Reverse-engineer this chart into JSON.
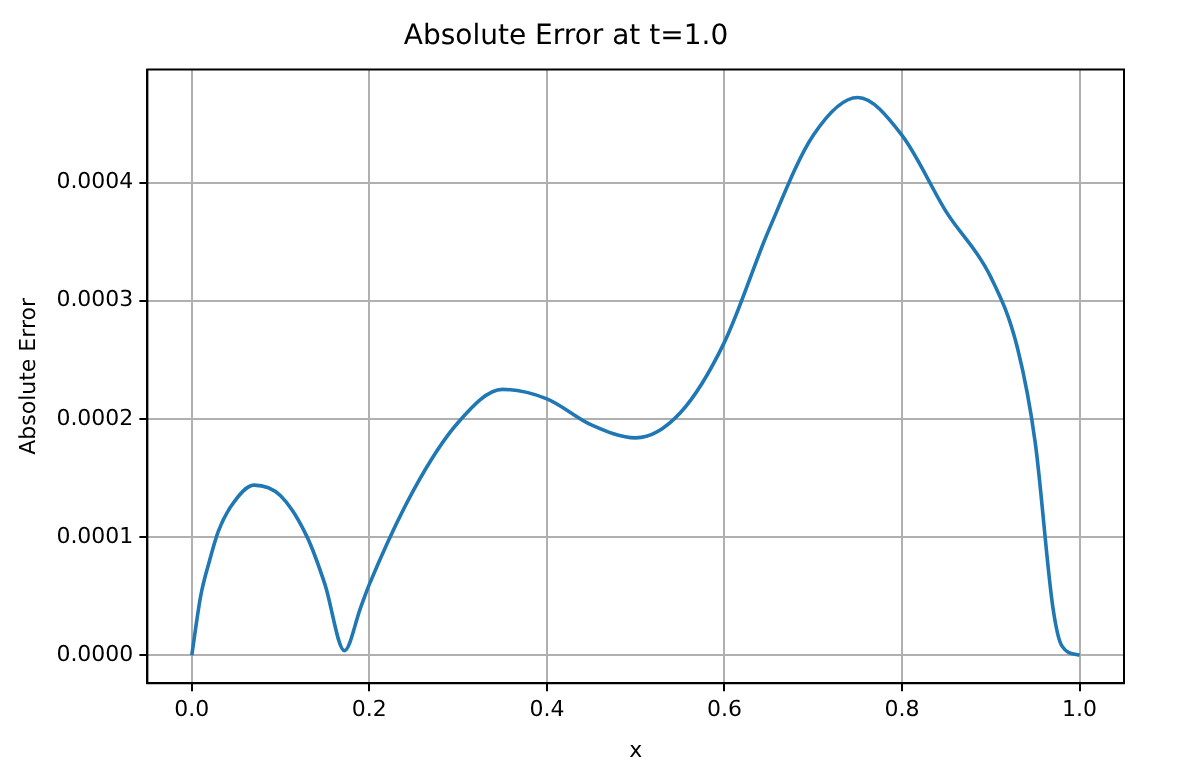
{
  "chart_data": {
    "type": "line",
    "title": "Absolute Error at t=1.0",
    "xlabel": "x",
    "ylabel": "Absolute Error",
    "x": [
      0,
      0.01,
      0.02,
      0.03,
      0.045,
      0.07,
      0.1,
      0.13,
      0.15,
      0.172,
      0.19,
      0.2,
      0.25,
      0.3,
      0.35,
      0.4,
      0.45,
      0.5,
      0.55,
      0.6,
      0.65,
      0.7,
      0.75,
      0.8,
      0.85,
      0.9,
      0.93,
      0.95,
      0.97,
      0.98,
      1.0
    ],
    "series": [
      {
        "color": "#1f77b4",
        "values": [
          0,
          5e-05,
          8e-05,
          0.000105,
          0.000127,
          0.000144,
          0.000135,
          0.0001,
          6e-05,
          4e-06,
          4e-05,
          6e-05,
          0.00014,
          0.000197,
          0.000225,
          0.000217,
          0.000195,
          0.000184,
          0.000205,
          0.000265,
          0.00036,
          0.00044,
          0.000472,
          0.00044,
          0.000375,
          0.00032,
          0.00026,
          0.00018,
          4e-05,
          8e-06,
          0
        ]
      }
    ],
    "xlim": [
      -0.05,
      1.05
    ],
    "ylim": [
      -2.36e-05,
      0.0004956
    ],
    "xticks": [
      {
        "value": 0,
        "label": "0.0"
      },
      {
        "value": 0.2,
        "label": "0.2"
      },
      {
        "value": 0.4,
        "label": "0.4"
      },
      {
        "value": 0.6,
        "label": "0.6"
      },
      {
        "value": 0.8,
        "label": "0.8"
      },
      {
        "value": 1,
        "label": "1.0"
      }
    ],
    "yticks": [
      {
        "value": 0,
        "label": "0.0000"
      },
      {
        "value": 0.0001,
        "label": "0.0001"
      },
      {
        "value": 0.0002,
        "label": "0.0002"
      },
      {
        "value": 0.0003,
        "label": "0.0003"
      },
      {
        "value": 0.0004,
        "label": "0.0004"
      }
    ],
    "grid": true,
    "marker": "none",
    "line_style": "solid"
  }
}
